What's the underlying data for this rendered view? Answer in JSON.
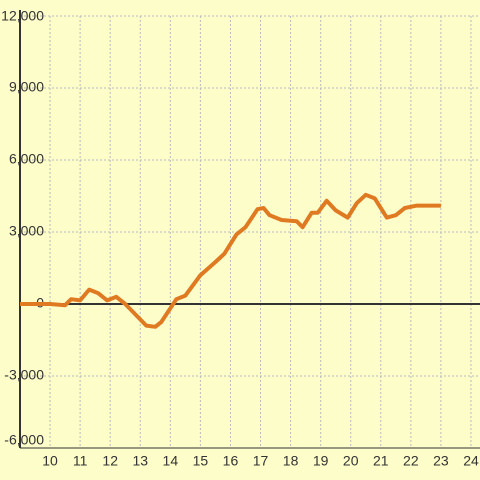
{
  "chart_data": {
    "type": "line",
    "x": [
      9,
      10,
      10.5,
      10.7,
      11,
      11.3,
      11.6,
      11.9,
      12.2,
      12.5,
      13.2,
      13.5,
      13.7,
      14.2,
      14.5,
      15,
      15.5,
      15.8,
      16.2,
      16.5,
      16.9,
      17.1,
      17.3,
      17.7,
      18.2,
      18.4,
      18.7,
      18.9,
      19.2,
      19.5,
      19.9,
      20.2,
      20.5,
      20.8,
      21.2,
      21.5,
      21.8,
      22.2,
      23
    ],
    "series": [
      {
        "color": "#e07a22",
        "values": [
          0,
          0,
          -50,
          200,
          150,
          600,
          450,
          150,
          300,
          0,
          -900,
          -950,
          -750,
          200,
          350,
          1200,
          1750,
          2100,
          2900,
          3200,
          3950,
          4000,
          3700,
          3500,
          3450,
          3200,
          3800,
          3800,
          4300,
          3900,
          3600,
          4200,
          4550,
          4400,
          3600,
          3700,
          4000,
          4100,
          4100
        ]
      }
    ],
    "xlim": [
      9,
      24.3
    ],
    "xticks": [
      10,
      11,
      12,
      13,
      14,
      15,
      16,
      17,
      18,
      19,
      20,
      21,
      22,
      23,
      24
    ],
    "ylim": [
      -6000,
      12000
    ],
    "yticks": [
      {
        "value": -6000,
        "label": "-6,000"
      },
      {
        "value": -3000,
        "label": "-3,000"
      },
      0,
      {
        "value": 3000,
        "label": "3,000"
      },
      {
        "value": 6000,
        "label": "6,000"
      },
      {
        "value": 9000,
        "label": "9,000"
      },
      {
        "value": 12000,
        "label": "12,000"
      }
    ],
    "grid": true
  }
}
